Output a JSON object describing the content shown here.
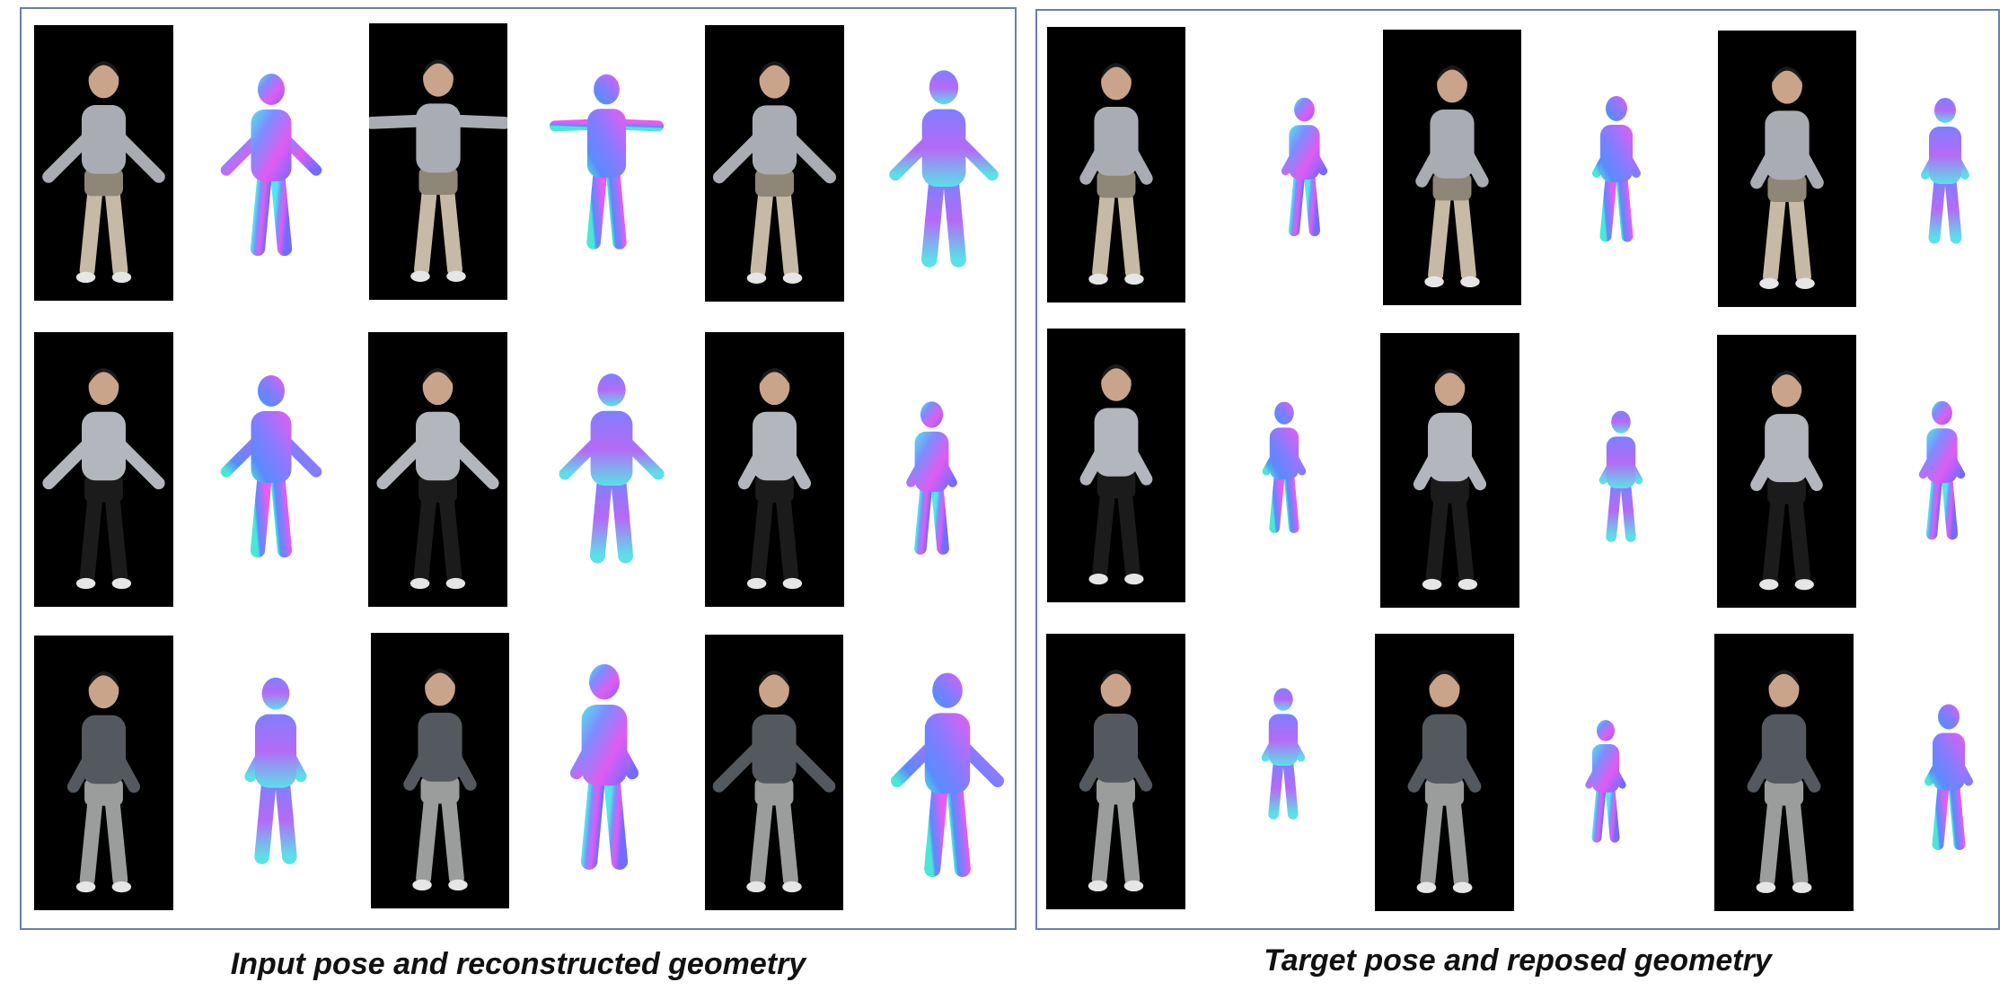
{
  "captions": {
    "left": "Input pose and reconstructed geometry",
    "right": "Target pose and reposed geometry"
  },
  "colors": {
    "panel_border": "#6b7fa6",
    "photo_bg": "#000000",
    "mesh_magenta": "#e85cf0",
    "mesh_violet": "#8f6cff",
    "mesh_blue": "#5a8bff",
    "mesh_cyan": "#4ae7e6",
    "top_subject": "#a9acb3",
    "middle_subject_top": "#b3b6bd",
    "middle_subject_pants": "#1b1b1b",
    "bottom_subject_top": "#54595f",
    "bottom_subject_pants": "#9a9d9c"
  },
  "panels": [
    {
      "name": "input-panel",
      "rows": [
        "subject-1",
        "subject-2",
        "subject-3"
      ],
      "views": [
        "back",
        "front",
        "side"
      ]
    },
    {
      "name": "target-panel",
      "rows": [
        "subject-1",
        "subject-2",
        "subject-3"
      ],
      "views": [
        "back",
        "front",
        "side"
      ]
    }
  ]
}
